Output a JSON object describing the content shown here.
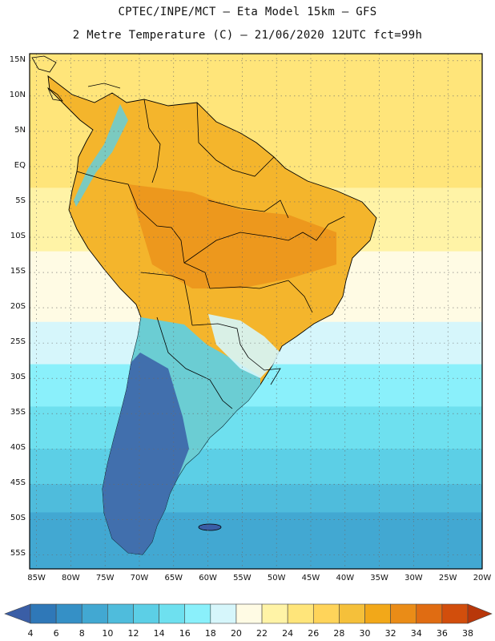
{
  "header": {
    "line1": "CPTEC/INPE/MCT –  Eta Model 15km – GFS",
    "line2": "2 Metre Temperature (C) – 21/06/2020 12UTC fct=99h"
  },
  "lat_labels": [
    "15N",
    "10N",
    "5N",
    "EQ",
    "5S",
    "10S",
    "15S",
    "20S",
    "25S",
    "30S",
    "35S",
    "40S",
    "45S",
    "50S",
    "55S"
  ],
  "lon_labels": [
    "85W",
    "80W",
    "75W",
    "70W",
    "65W",
    "60W",
    "55W",
    "50W",
    "45W",
    "40W",
    "35W",
    "30W",
    "25W",
    "20W"
  ],
  "colorbar": {
    "labels": [
      "4",
      "6",
      "8",
      "10",
      "12",
      "14",
      "16",
      "18",
      "20",
      "22",
      "24",
      "26",
      "28",
      "30",
      "32",
      "34",
      "36",
      "38"
    ],
    "colors": [
      "#3a5ea6",
      "#2f78b8",
      "#3590c6",
      "#42a8d2",
      "#4fbcdc",
      "#5ccfe6",
      "#6ee0ef",
      "#8af0fb",
      "#d6f6fb",
      "#fffbe4",
      "#fff3a6",
      "#ffe57a",
      "#ffd45a",
      "#f5c03a",
      "#f2a819",
      "#ea8c17",
      "#e06c12",
      "#d24e0c",
      "#b8370a"
    ]
  },
  "map": {
    "lon_range": [
      -86,
      -20
    ],
    "lat_range": [
      -57,
      16
    ],
    "ocean_bands": [
      {
        "from": 16,
        "to": -3,
        "color_index": 11
      },
      {
        "from": -3,
        "to": -12,
        "color_index": 10
      },
      {
        "from": -12,
        "to": -22,
        "color_index": 9
      },
      {
        "from": -22,
        "to": -28,
        "color_index": 8
      },
      {
        "from": -28,
        "to": -34,
        "color_index": 7
      },
      {
        "from": -34,
        "to": -40,
        "color_index": 6
      },
      {
        "from": -40,
        "to": -45,
        "color_index": 5
      },
      {
        "from": -45,
        "to": -49,
        "color_index": 4
      },
      {
        "from": -49,
        "to": -57,
        "color_index": 3
      }
    ]
  }
}
